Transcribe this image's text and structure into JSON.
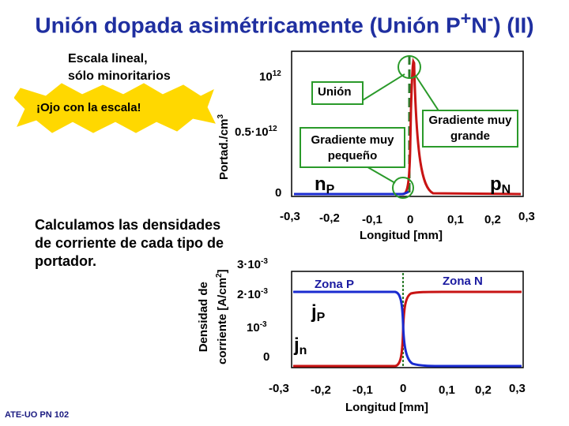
{
  "title": "Unión dopada asimétricamente (Unión P+N-) (II)",
  "note": {
    "line1": "Escala lineal,",
    "line2": "sólo minoritarios"
  },
  "warning": "¡Ojo con la escala!",
  "calc_text": {
    "line1": "Calculamos las densidades",
    "line2": "de corriente de cada tipo de",
    "line3": "portador."
  },
  "footer": "ATE-UO PN 102",
  "top_plot": {
    "ylabel": "Portad./cm3",
    "yticks": [
      "1012",
      "0.5·1012",
      "0"
    ],
    "xticks": [
      "-0,3",
      "-0,2",
      "-0,1",
      "0",
      "0,1",
      "0,2",
      "0,3"
    ],
    "xlabel": "Longitud  [mm]",
    "callouts": {
      "union": "Unión",
      "small_grad": "Gradiente muy pequeño",
      "large_grad": "Gradiente muy grande"
    },
    "labels": {
      "nP": "nP",
      "pN": "pN"
    }
  },
  "bottom_plot": {
    "ylabel_line1": "Densidad de",
    "ylabel_line2": "corriente [A/cm2]",
    "yticks": [
      "3·10-3",
      "2·10-3",
      "10-3",
      "0"
    ],
    "xticks": [
      "-0,3",
      "-0,2",
      "-0,1",
      "0",
      "0,1",
      "0,2",
      "0,3"
    ],
    "xlabel": "Longitud  [mm]",
    "zones": {
      "p": "Zona P",
      "n": "Zona N"
    },
    "labels": {
      "jp": "jp",
      "jn": "jn"
    }
  },
  "colors": {
    "title": "#1f2fa0",
    "electron_curve": "#1a2bd0",
    "hole_curve": "#c81414",
    "callout_green": "#2a9a2a",
    "warning_fill": "#ffd800",
    "junction_line": "#2a7a2a"
  }
}
